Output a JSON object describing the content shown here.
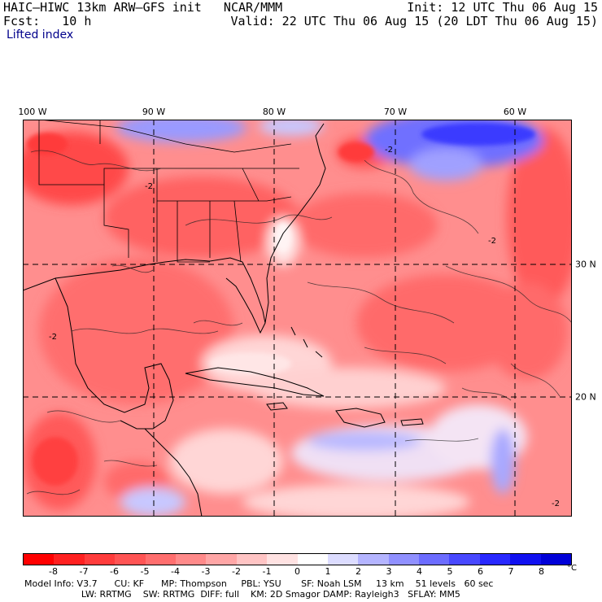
{
  "header": {
    "title": "HAIC–HIWC 13km ARW–GFS init   NCAR/MMM",
    "init": "Init: 12 UTC Thu 06 Aug 15",
    "fcst": "Fcst:   10 h",
    "valid": "Valid: 22 UTC Thu 06 Aug 15 (20 LDT Thu 06 Aug 15)",
    "field": "Lifted index"
  },
  "map": {
    "lon_labels": [
      "100 W",
      "90 W",
      "80 W",
      "70 W",
      "60 W"
    ],
    "lat_labels": [
      "30 N",
      "20 N"
    ],
    "contour_label": "-2"
  },
  "colorbar": {
    "unit": "°C",
    "ticks": [
      "-8",
      "-7",
      "-6",
      "-5",
      "-4",
      "-3",
      "-2",
      "-1",
      "0",
      "1",
      "2",
      "3",
      "4",
      "5",
      "6",
      "7",
      "8"
    ],
    "colors": [
      "#ff0000",
      "#ff2020",
      "#ff3c3c",
      "#ff5454",
      "#ff6e6e",
      "#ff8a8a",
      "#ffa6a6",
      "#ffc4c4",
      "#ffe2e2",
      "#ffffff",
      "#dcdcff",
      "#b4b4ff",
      "#9090ff",
      "#6c6cff",
      "#4848ff",
      "#2828ff",
      "#1010f0",
      "#0000d8"
    ]
  },
  "footer": {
    "line1": "Model Info: V3.7      CU: KF      MP: Thompson     PBL: YSU       SF: Noah LSM     13 km    51 levels   60 sec",
    "line2": "                    LW: RRTMG    SW: RRTMG  DIFF: full    KM: 2D Smagor DAMP: Rayleigh3   SFLAY: MM5"
  }
}
